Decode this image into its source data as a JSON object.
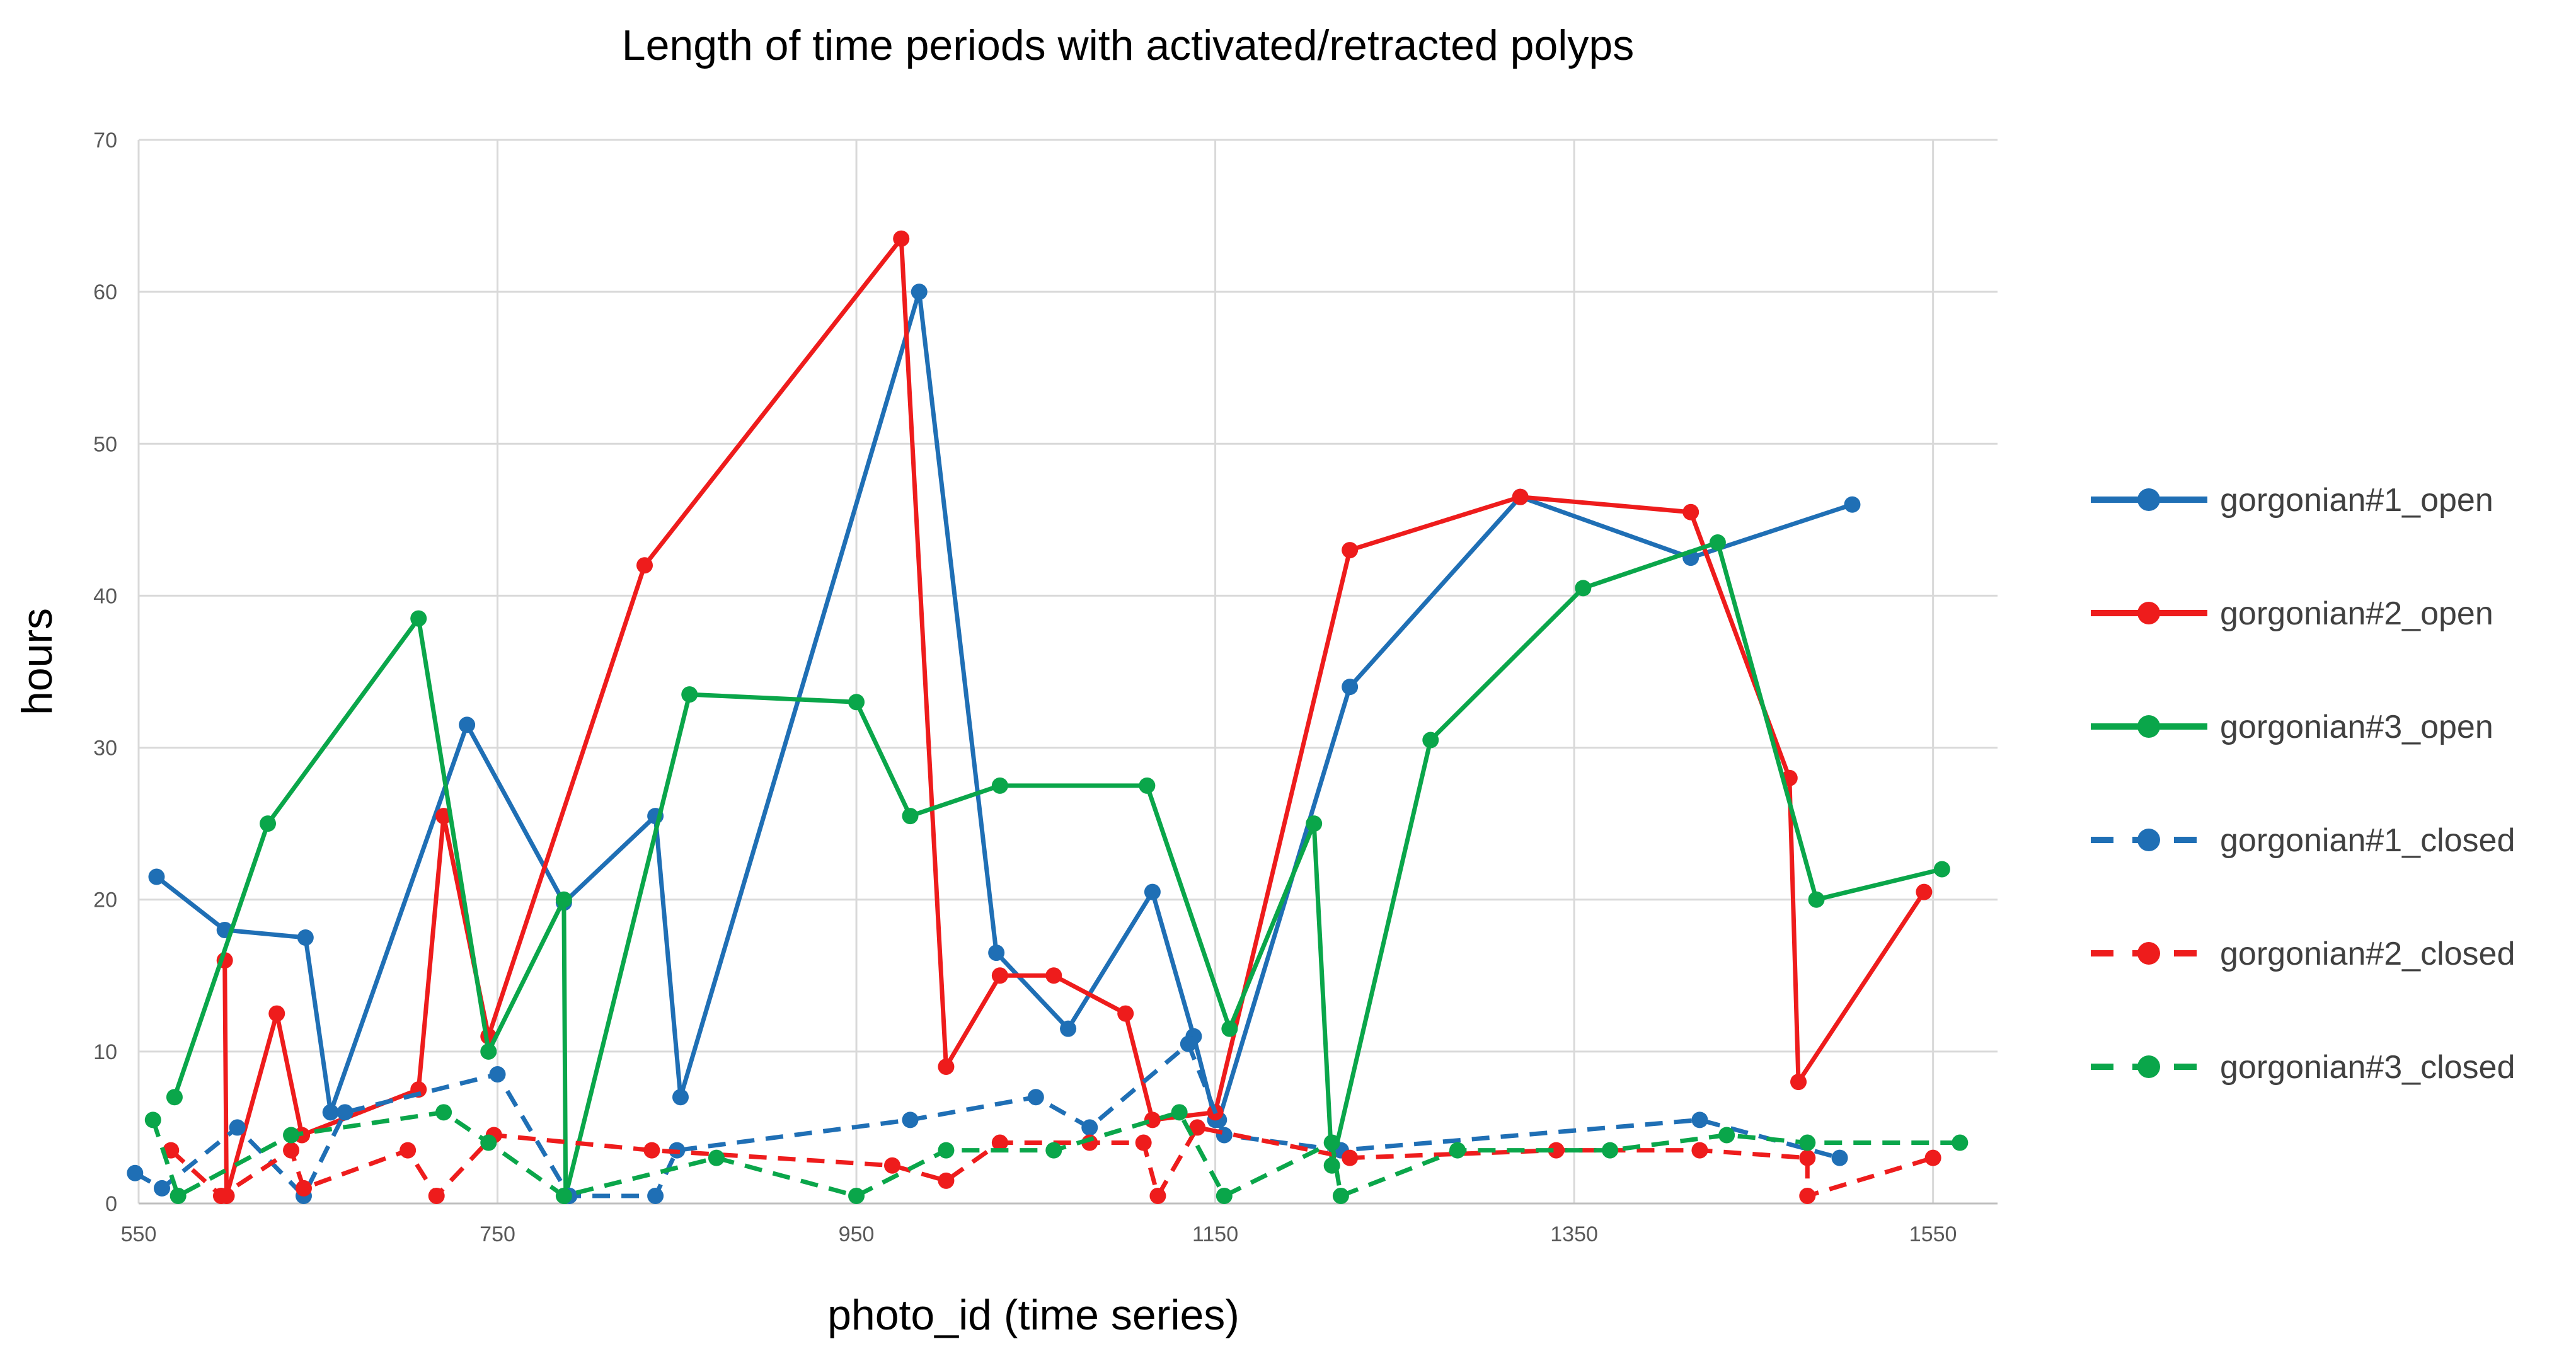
{
  "chart_data": {
    "type": "line",
    "title": "Length of time periods with activated/retracted polyps",
    "xlabel": "photo_id (time series)",
    "ylabel": "hours",
    "xlim": [
      550,
      1600
    ],
    "ylim": [
      0,
      70
    ],
    "x_ticks": [
      550,
      750,
      950,
      1150,
      1350,
      1550
    ],
    "y_ticks": [
      0,
      10,
      20,
      30,
      40,
      50,
      60,
      70
    ],
    "grid": true,
    "legend_position": "right",
    "series": [
      {
        "name": "gorgonian#1_open",
        "color": "#1f6fb5",
        "dashed": false,
        "points": [
          [
            560,
            21.5
          ],
          [
            598,
            18
          ],
          [
            643,
            17.5
          ],
          [
            657,
            6
          ],
          [
            733,
            31.5
          ],
          [
            787,
            19.8
          ],
          [
            838,
            25.5
          ],
          [
            852,
            7
          ],
          [
            985,
            60
          ],
          [
            1028,
            16.5
          ],
          [
            1068,
            11.5
          ],
          [
            1115,
            20.5
          ],
          [
            1138,
            11
          ],
          [
            1150,
            5.5
          ],
          [
            1152,
            5.5
          ],
          [
            1225,
            34
          ],
          [
            1320,
            46.5
          ],
          [
            1415,
            42.5
          ],
          [
            1505,
            46
          ]
        ]
      },
      {
        "name": "gorgonian#2_open",
        "color": "#ee1c1c",
        "dashed": false,
        "points": [
          [
            598,
            16
          ],
          [
            599,
            0.5
          ],
          [
            627,
            12.5
          ],
          [
            641,
            4.5
          ],
          [
            706,
            7.5
          ],
          [
            720,
            25.5
          ],
          [
            745,
            11
          ],
          [
            832,
            42
          ],
          [
            975,
            63.5
          ],
          [
            1000,
            9
          ],
          [
            1030,
            15
          ],
          [
            1060,
            15
          ],
          [
            1100,
            12.5
          ],
          [
            1115,
            5.5
          ],
          [
            1150,
            6
          ],
          [
            1225,
            43
          ],
          [
            1320,
            46.5
          ],
          [
            1415,
            45.5
          ],
          [
            1470,
            28
          ],
          [
            1475,
            8
          ],
          [
            1545,
            20.5
          ]
        ]
      },
      {
        "name": "gorgonian#3_open",
        "color": "#0aa64a",
        "dashed": false,
        "points": [
          [
            570,
            7
          ],
          [
            622,
            25
          ],
          [
            706,
            38.5
          ],
          [
            745,
            10
          ],
          [
            787,
            20
          ],
          [
            788,
            0.5
          ],
          [
            857,
            33.5
          ],
          [
            950,
            33
          ],
          [
            980,
            25.5
          ],
          [
            1030,
            27.5
          ],
          [
            1112,
            27.5
          ],
          [
            1158,
            11.5
          ],
          [
            1205,
            25
          ],
          [
            1215,
            2.5
          ],
          [
            1270,
            30.5
          ],
          [
            1355,
            40.5
          ],
          [
            1430,
            43.5
          ],
          [
            1485,
            20
          ],
          [
            1555,
            22
          ]
        ]
      },
      {
        "name": "gorgonian#1_closed",
        "color": "#1f6fb5",
        "dashed": true,
        "points": [
          [
            548,
            2
          ],
          [
            563,
            1
          ],
          [
            605,
            5
          ],
          [
            642,
            0.5
          ],
          [
            665,
            6
          ],
          [
            750,
            8.5
          ],
          [
            790,
            0.5
          ],
          [
            838,
            0.5
          ],
          [
            850,
            3.5
          ],
          [
            980,
            5.5
          ],
          [
            1050,
            7
          ],
          [
            1080,
            5
          ],
          [
            1135,
            10.5
          ],
          [
            1155,
            4.5
          ],
          [
            1220,
            3.5
          ],
          [
            1420,
            5.5
          ],
          [
            1498,
            3
          ]
        ]
      },
      {
        "name": "gorgonian#2_closed",
        "color": "#ee1c1c",
        "dashed": true,
        "points": [
          [
            568,
            3.5
          ],
          [
            596,
            0.5
          ],
          [
            635,
            3.5
          ],
          [
            642,
            1
          ],
          [
            700,
            3.5
          ],
          [
            716,
            0.5
          ],
          [
            748,
            4.5
          ],
          [
            836,
            3.5
          ],
          [
            970,
            2.5
          ],
          [
            1000,
            1.5
          ],
          [
            1030,
            4
          ],
          [
            1080,
            4
          ],
          [
            1110,
            4
          ],
          [
            1118,
            0.5
          ],
          [
            1140,
            5
          ],
          [
            1225,
            3
          ],
          [
            1340,
            3.5
          ],
          [
            1420,
            3.5
          ],
          [
            1480,
            3
          ],
          [
            1480,
            0.5
          ],
          [
            1550,
            3
          ]
        ]
      },
      {
        "name": "gorgonian#3_closed",
        "color": "#0aa64a",
        "dashed": true,
        "points": [
          [
            558,
            5.5
          ],
          [
            572,
            0.5
          ],
          [
            635,
            4.5
          ],
          [
            720,
            6
          ],
          [
            745,
            4
          ],
          [
            787,
            0.5
          ],
          [
            872,
            3
          ],
          [
            950,
            0.5
          ],
          [
            1000,
            3.5
          ],
          [
            1060,
            3.5
          ],
          [
            1130,
            6
          ],
          [
            1155,
            0.5
          ],
          [
            1215,
            4
          ],
          [
            1220,
            0.5
          ],
          [
            1285,
            3.5
          ],
          [
            1370,
            3.5
          ],
          [
            1435,
            4.5
          ],
          [
            1480,
            4
          ],
          [
            1565,
            4
          ]
        ]
      }
    ]
  }
}
